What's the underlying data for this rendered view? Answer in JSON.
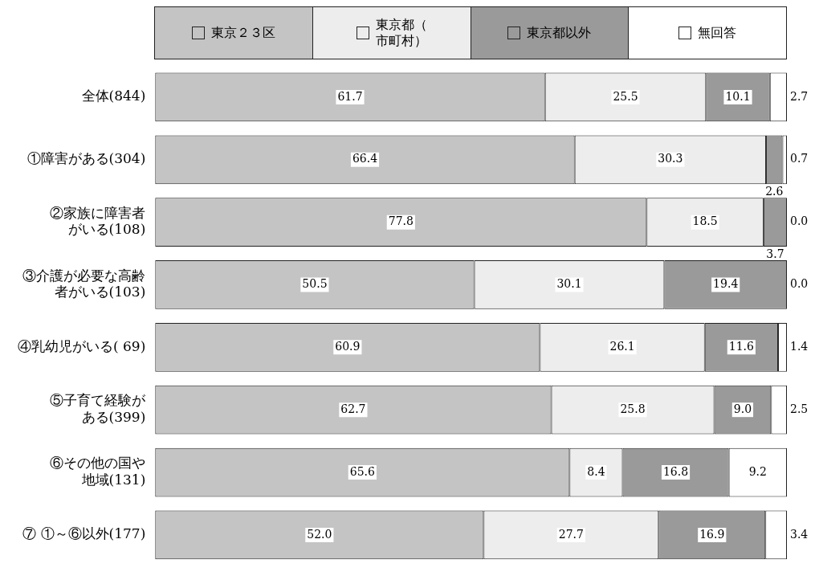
{
  "chart_data": {
    "type": "bar",
    "orientation": "horizontal",
    "stacked": true,
    "categories": [
      "全体(844)",
      "①障害がある(304)",
      "②家族に障害者がいる(108)",
      "③介護が必要な高齢者がいる(103)",
      "④乳幼児がいる( 69)",
      "⑤子育て経験がある(399)",
      "⑥その他の国や地域(131)",
      "⑦ ①～⑥以外(177)"
    ],
    "series": [
      {
        "name": "東京２３区",
        "color": "#c4c4c4",
        "values": [
          61.7,
          66.4,
          77.8,
          50.5,
          60.9,
          62.7,
          65.6,
          52.0
        ],
        "value_labels": [
          "61.7",
          "66.4",
          "77.8",
          "50.5",
          "60.9",
          "62.7",
          "65.6",
          "52.0"
        ]
      },
      {
        "name": "東京都（市町村）",
        "color": "#ededed",
        "values": [
          25.5,
          30.3,
          18.5,
          30.1,
          26.1,
          25.8,
          8.4,
          27.7
        ],
        "value_labels": [
          "25.5",
          "30.3",
          "18.5",
          "30.1",
          "26.1",
          "25.8",
          "8.4",
          "27.7"
        ]
      },
      {
        "name": "東京都以外",
        "color": "#9a9a9a",
        "values": [
          10.1,
          2.6,
          3.7,
          19.4,
          11.6,
          9.0,
          16.8,
          16.9
        ],
        "value_labels": [
          "10.1",
          "2.6",
          "3.7",
          "19.4",
          "11.6",
          "9.0",
          "16.8",
          "16.9"
        ]
      },
      {
        "name": "無回答",
        "color": "#ffffff",
        "values": [
          2.7,
          0.7,
          0.0,
          0.0,
          1.4,
          2.5,
          9.2,
          3.4
        ],
        "value_labels": [
          "2.7",
          "0.7",
          "0.0",
          "0.0",
          "1.4",
          "2.5",
          "9.2",
          "3.4"
        ]
      }
    ],
    "xlim": [
      0,
      100
    ],
    "tick_labels": "y",
    "grid": false,
    "legend": "top"
  }
}
